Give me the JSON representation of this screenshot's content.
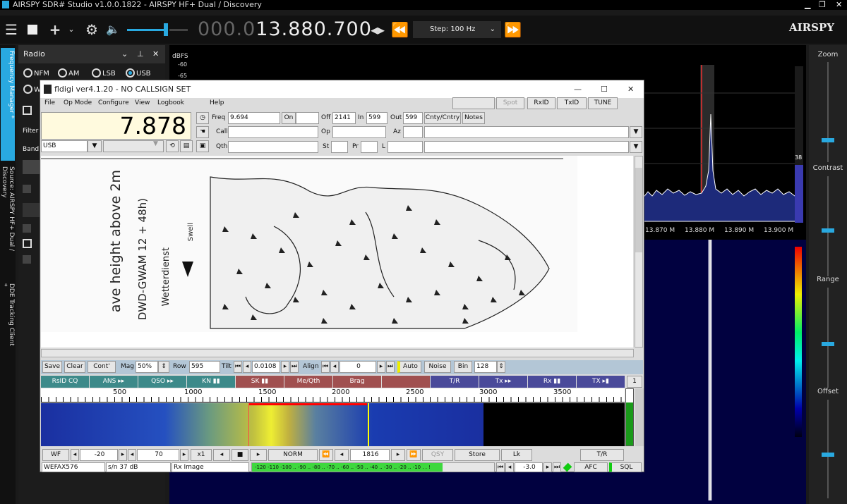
{
  "titlebar": {
    "title": "AIRSPY SDR# Studio v1.0.0.1822 - AIRSPY HF+ Dual / Discovery"
  },
  "toolbar": {
    "freq_dim": "000.0",
    "freq_main": "13.880.700",
    "step": "Step: 100 Hz",
    "brand": "AIRSPY"
  },
  "sidebar_tabs": [
    "Frequency Manager *",
    "Source: AIRSPY HF+ Dual / Discovery",
    "DDE Tracking Client *"
  ],
  "radio": {
    "title": "Radio",
    "modes": [
      "NFM",
      "AM",
      "LSB",
      "USB"
    ],
    "selected": "USB",
    "w_label": "W",
    "labels": {
      "filter": "Filter",
      "band": "Band"
    }
  },
  "spectrum": {
    "unit": "dBFS",
    "db_ticks": [
      "-60",
      "-65"
    ],
    "freq_ticks": [
      "13.870 M",
      "13.880 M",
      "13.890 M",
      "13.900 M"
    ],
    "level_value": "38"
  },
  "right": {
    "zoom": "Zoom",
    "contrast": "Contrast",
    "range": "Range",
    "offset": "Offset"
  },
  "fldigi": {
    "title": "fldigi ver4.1.20 - NO CALLSIGN SET",
    "menu": [
      "File",
      "Op Mode",
      "Configure",
      "View",
      "Logbook",
      "Help"
    ],
    "top_buttons": [
      "Spot",
      "RxID",
      "TxID",
      "TUNE"
    ],
    "freq_display": "7.878",
    "mode": "USB",
    "fields": {
      "freq_label": "Freq",
      "freq": "9.694",
      "on_label": "On",
      "off_label": "Off",
      "off": "2141",
      "in_label": "In",
      "in": "599",
      "out_label": "Out",
      "out": "599",
      "cnty": "Cnty/Cntry",
      "notes": "Notes",
      "call": "Call",
      "op": "Op",
      "az": "Az",
      "qth": "Qth",
      "st": "St",
      "pr": "Pr",
      "l": "L"
    },
    "image_text": {
      "wave": "ave height above 2m",
      "dwd": "DWD-GWAM 12 + 48h)",
      "wetter": "Wetterdienst",
      "swell": "Swell"
    },
    "ctrl": {
      "save": "Save",
      "clear": "Clear",
      "cont": "Cont'",
      "mag": "Mag",
      "mag_val": "50%",
      "row": "Row",
      "row_val": "595",
      "tilt": "Tilt",
      "tilt_val": "0.0108",
      "align": "Align",
      "align_val": "0",
      "auto": "Auto",
      "noise": "Noise",
      "bin": "Bin",
      "bin_val": "128"
    },
    "macros": [
      "RsID CQ",
      "ANS ▸▸",
      "QSO ▸▸",
      "KN ▮▮",
      "SK ▮▮",
      "Me/Qth",
      "Brag",
      "",
      "T/R",
      "Tx ▸▸",
      "Rx ▮▮",
      "TX ▸▮"
    ],
    "macro_page": "1",
    "scale": [
      "500",
      "1000",
      "1500",
      "2000",
      "2500",
      "3000",
      "3500"
    ],
    "row1": {
      "wf": "WF",
      "min": "-20",
      "range": "70",
      "x1": "x1",
      "norm": "NORM",
      "pos": "1816",
      "qsy": "QSY",
      "store": "Store",
      "lk": "Lk",
      "tr": "T/R"
    },
    "status": {
      "mode": "WEFAX576",
      "sn": "s/n  37 dB",
      "rx": "Rx  Image",
      "meter": "-120 -110 -100 .. -90 .. -80 .. -70 .. -60 .. -50 .. -40 .. -30 .. -20 .. -10 . . !",
      "val": "-3.0",
      "afc": "AFC",
      "sql": "SQL"
    }
  },
  "colors": {
    "accent": "#29a9e0",
    "macro_teal": "#3d8a8a",
    "macro_red": "#a05050",
    "macro_blue": "#4a4a9a"
  }
}
